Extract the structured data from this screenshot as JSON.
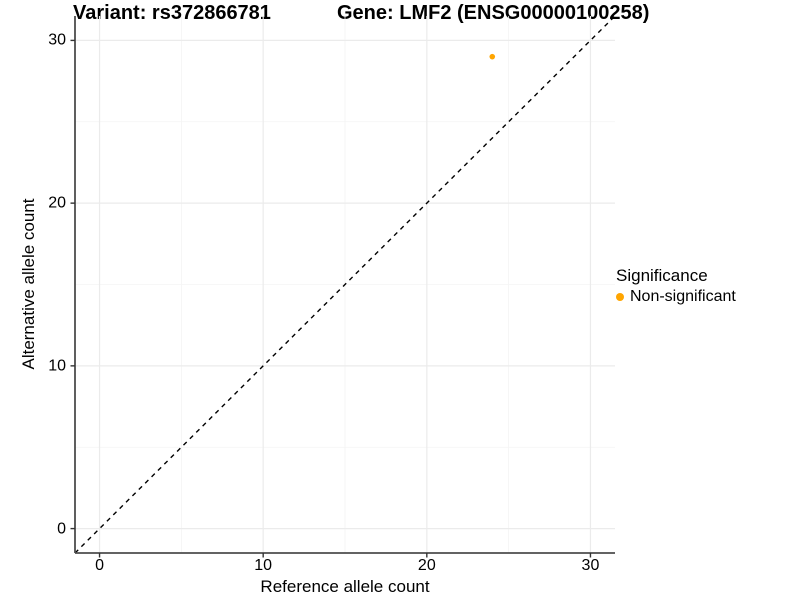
{
  "title": {
    "variant": "Variant: rs372866781",
    "gene": "Gene: LMF2 (ENSG00000100258)"
  },
  "legend": {
    "title": "Significance",
    "items": [
      {
        "label": "Non-significant",
        "color": "#FFA500"
      }
    ]
  },
  "chart_data": {
    "type": "scatter",
    "title": "Variant: rs372866781    Gene: LMF2 (ENSG00000100258)",
    "xlabel": "Reference allele count",
    "ylabel": "Alternative allele count",
    "xlim": [
      -1.5,
      31.5
    ],
    "ylim": [
      -1.5,
      31.5
    ],
    "x_ticks": [
      0,
      10,
      20,
      30
    ],
    "y_ticks": [
      0,
      10,
      20,
      30
    ],
    "x_minor_ticks": [
      5,
      15,
      25
    ],
    "y_minor_ticks": [
      5,
      15,
      25
    ],
    "grid": "major+minor",
    "legend_position": "right",
    "series": [
      {
        "name": "Non-significant",
        "color": "#FFA500",
        "points": [
          {
            "x": 24,
            "y": 29
          }
        ]
      }
    ],
    "reference_line": {
      "slope": 1,
      "intercept": 0,
      "style": "dashed",
      "color": "#000000"
    }
  },
  "colors": {
    "background": "#FFFFFF",
    "grid_major": "#EBEBEB",
    "grid_minor": "#F4F4F4",
    "axis_line": "#4D4D4D",
    "tick": "#333333",
    "text": "#000000"
  }
}
